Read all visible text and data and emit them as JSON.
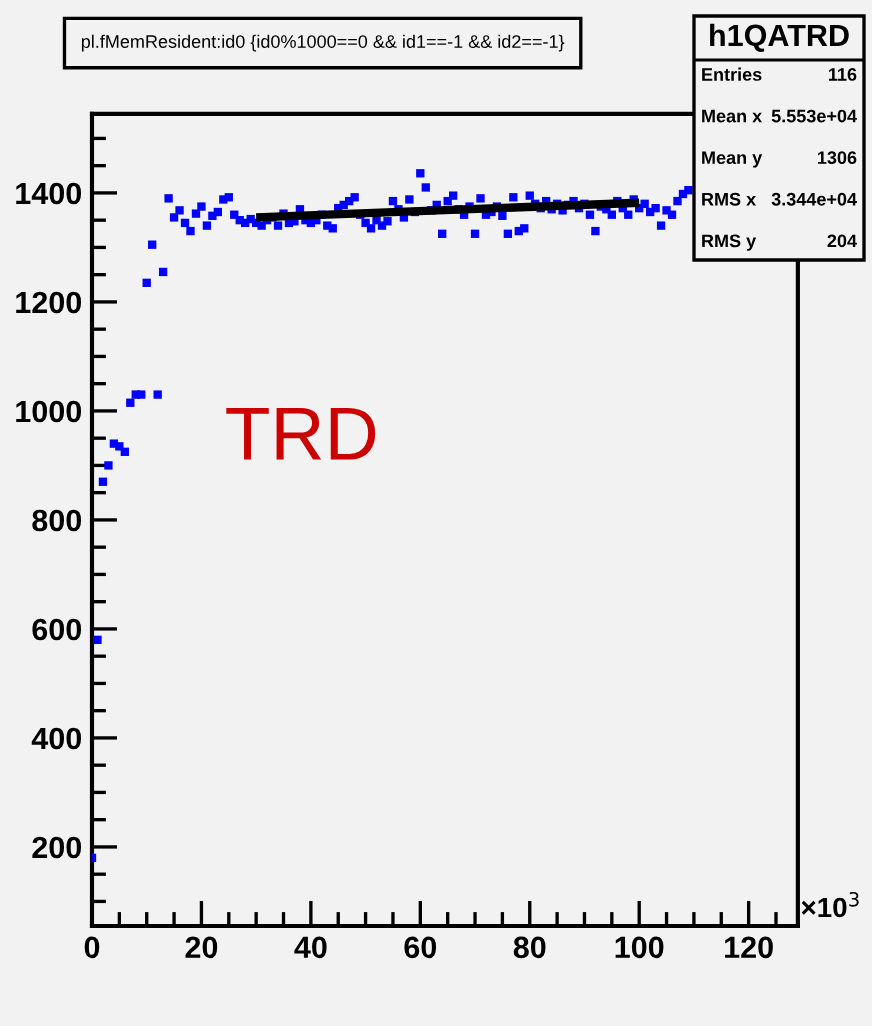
{
  "chart_data": {
    "type": "scatter",
    "title": "pl.fMemResident:id0 {id0%1000==0 && id1==-1 && id2==-1}",
    "annotations": [
      "TRD",
      "×10$^{3}$",
      "h1QATRD",
      "Entries",
      "116",
      "Mean x",
      "5.553e+04",
      "Mean y",
      "1306",
      "RMS x",
      "3.344e+04",
      "RMS y",
      "204"
    ],
    "xlim": [
      0,
      129
    ],
    "xticks": [
      0,
      20,
      40,
      60,
      80,
      100,
      120
    ],
    "ylim": [
      55,
      1545
    ],
    "yticks": [
      200,
      400,
      600,
      800,
      1000,
      1200,
      1400
    ],
    "grid": false,
    "legend": false,
    "marker": "square",
    "series": [
      {
        "color": "#0000ff",
        "x": [
          0,
          1,
          2,
          3,
          4,
          5,
          6,
          7,
          8,
          9,
          10,
          11,
          12,
          13,
          14,
          15,
          16,
          17,
          18,
          19,
          20,
          21,
          22,
          23,
          24,
          25,
          26,
          27,
          28,
          29,
          30,
          31,
          32,
          33,
          34,
          35,
          36,
          37,
          38,
          39,
          40,
          41,
          42,
          43,
          44,
          45,
          46,
          47,
          48,
          49,
          50,
          51,
          52,
          53,
          54,
          55,
          56,
          57,
          58,
          59,
          60,
          61,
          62,
          63,
          64,
          65,
          66,
          67,
          68,
          69,
          70,
          71,
          72,
          73,
          74,
          75,
          76,
          77,
          78,
          79,
          80,
          81,
          82,
          83,
          84,
          85,
          86,
          87,
          88,
          89,
          90,
          91,
          92,
          93,
          94,
          95,
          96,
          97,
          98,
          99,
          100,
          101,
          102,
          103,
          104,
          105,
          106,
          107,
          108,
          109
        ],
        "values": [
          180,
          580,
          870,
          900,
          940,
          935,
          925,
          1015,
          1030,
          1030,
          1235,
          1305,
          1030,
          1255,
          1390,
          1355,
          1368,
          1345,
          1330,
          1362,
          1375,
          1340,
          1358,
          1365,
          1388,
          1392,
          1360,
          1350,
          1345,
          1352,
          1345,
          1340,
          1350,
          1355,
          1340,
          1362,
          1345,
          1348,
          1370,
          1350,
          1345,
          1350,
          1360,
          1340,
          1335,
          1372,
          1378,
          1385,
          1392,
          1360,
          1345,
          1335,
          1350,
          1340,
          1348,
          1385,
          1370,
          1355,
          1388,
          1365,
          1436,
          1410,
          1368,
          1378,
          1325,
          1385,
          1395,
          1370,
          1360,
          1375,
          1325,
          1390,
          1360,
          1365,
          1375,
          1358,
          1325,
          1392,
          1330,
          1335,
          1395,
          1380,
          1372,
          1385,
          1370,
          1380,
          1368,
          1378,
          1385,
          1372,
          1380,
          1360,
          1330,
          1375,
          1370,
          1360,
          1385,
          1372,
          1360,
          1388,
          1372,
          1380,
          1365,
          1372,
          1340,
          1368,
          1360,
          1385,
          1398,
          1405
        ]
      },
      {
        "type": "line",
        "color": "#000000",
        "marker": "none",
        "line_style": "solid",
        "x": [
          30,
          100
        ],
        "values": [
          1355,
          1382
        ]
      }
    ]
  }
}
